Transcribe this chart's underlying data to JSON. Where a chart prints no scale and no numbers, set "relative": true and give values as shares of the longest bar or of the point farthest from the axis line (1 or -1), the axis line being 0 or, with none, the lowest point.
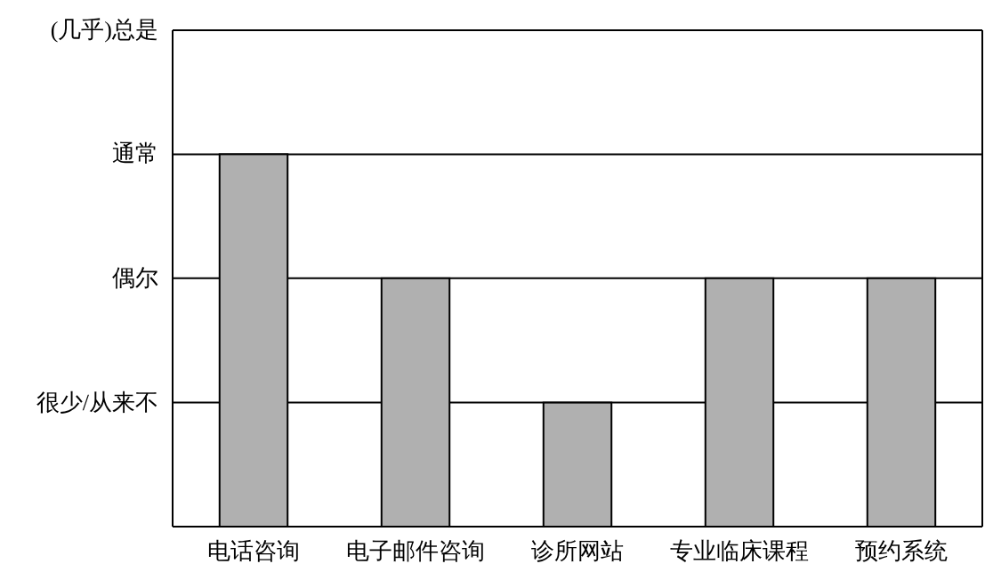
{
  "chart_data": {
    "type": "bar",
    "categories": [
      "电话咨询",
      "电子邮件咨询",
      "诊所网站",
      "专业临床课程",
      "预约系统"
    ],
    "values": [
      1,
      0.667,
      0.333,
      0.667,
      0.667
    ],
    "color": "#b0b0b0",
    "relative": true,
    "ref_lines": [
      {
        "axis": "y",
        "value": 0.333,
        "label": "很少/从来不",
        "color": "#000000"
      },
      {
        "axis": "y",
        "value": 0.667,
        "label": "偶尔",
        "color": "#000000"
      },
      {
        "axis": "y",
        "value": 1,
        "label": "通常",
        "color": "#000000"
      },
      {
        "axis": "y",
        "value": 1.333,
        "label": "(几乎)总是",
        "color": "#000000"
      }
    ]
  }
}
